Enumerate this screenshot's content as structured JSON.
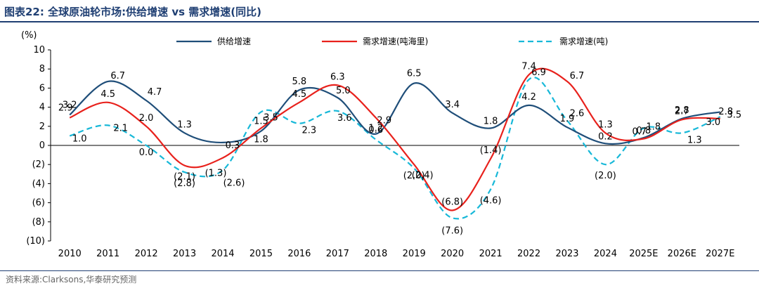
{
  "title": "图表22:  全球原油轮市场:供给增速 vs 需求增速(同比)",
  "source": "资料来源:Clarksons,华泰研究预测",
  "chart_data": {
    "type": "line",
    "y_unit": "(%)",
    "ylim": [
      -10,
      10
    ],
    "ytick_values": [
      10,
      8,
      6,
      4,
      2,
      0,
      -2,
      -4,
      -6,
      -8,
      -10
    ],
    "ytick_labels": [
      "10",
      "8",
      "6",
      "4",
      "2",
      "0",
      "(2)",
      "(4)",
      "(6)",
      "(8)",
      "(10)"
    ],
    "categories": [
      "2010",
      "2011",
      "2012",
      "2013",
      "2014",
      "2015",
      "2016",
      "2017",
      "2018",
      "2019",
      "2020",
      "2021",
      "2022",
      "2023",
      "2024",
      "2025E",
      "2026E",
      "2027E"
    ],
    "grid": false,
    "legend_position": "top",
    "series": [
      {
        "name": "供给增速",
        "color": "#1f4e79",
        "dash": false,
        "values": [
          3.2,
          6.7,
          4.7,
          1.3,
          0.3,
          1.5,
          5.8,
          5.0,
          1.2,
          6.5,
          3.4,
          1.8,
          4.2,
          1.9,
          0.2,
          0.8,
          2.8,
          3.5
        ],
        "labels": [
          "3.2",
          "6.7",
          "4.7",
          "1.3",
          "0.3",
          "1.5",
          "5.8",
          "5.0",
          "1.2",
          "6.5",
          "3.4",
          "1.8",
          "4.2",
          "1.9",
          "0.2",
          "0.8",
          "2.8",
          "3.5"
        ]
      },
      {
        "name": "需求增速(吨海里)",
        "color": "#e8211c",
        "dash": false,
        "values": [
          2.9,
          4.5,
          2.0,
          -2.1,
          -1.3,
          1.8,
          4.5,
          6.3,
          2.9,
          -2.0,
          -6.8,
          -1.4,
          7.4,
          6.7,
          1.3,
          0.7,
          2.7,
          2.8
        ],
        "labels": [
          "2.9",
          "4.5",
          "2.0",
          "(2.1)",
          "(1.3)",
          "1.8",
          "4.5",
          "6.3",
          "2.9",
          "(2.0)",
          "(6.8)",
          "(1.4)",
          "7.4",
          "6.7",
          "1.3",
          "0.7",
          "2.7",
          "2.8"
        ]
      },
      {
        "name": "需求增速(吨)",
        "color": "#17b8d8",
        "dash": true,
        "values": [
          1.0,
          2.1,
          0.0,
          -2.8,
          -2.6,
          3.5,
          2.3,
          3.6,
          0.6,
          -2.4,
          -7.6,
          -4.6,
          6.9,
          2.6,
          -2.0,
          1.8,
          1.3,
          3.0
        ],
        "labels": [
          "1.0",
          "2.1",
          "0.0",
          "(2.8)",
          "(2.6)",
          "3.5",
          "2.3",
          "3.6",
          "0.6",
          "(2.4)",
          "(7.6)",
          "(4.6)",
          "6.9",
          "2.6",
          "(2.0)",
          "1.8",
          "1.3",
          "3.0"
        ]
      }
    ]
  }
}
